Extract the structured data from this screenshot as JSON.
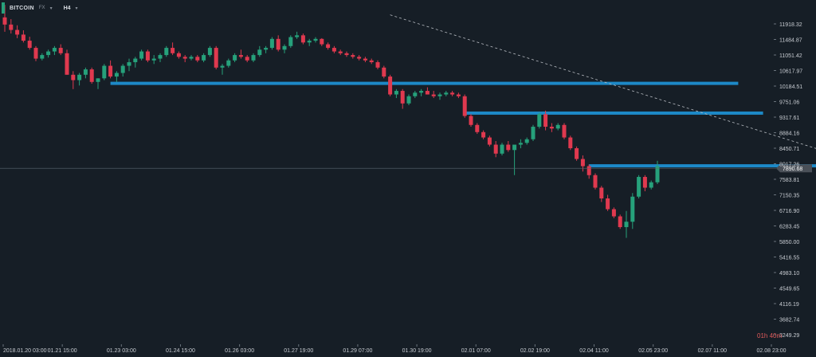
{
  "header": {
    "symbol": "BITCOIN",
    "exchange_dropdown": "FX",
    "timeframe": "H4",
    "timeframe_dropdown": "▾"
  },
  "timer": "01h 40m",
  "colors": {
    "background": "#161e26",
    "up": "#26a17b",
    "down": "#e0394f",
    "level": "#1e8fd0",
    "trend": "#b8bcc2",
    "price_line": "#5a6872",
    "price_label_bg": "#4a5058"
  },
  "chart_data": {
    "type": "candlestick",
    "title": "",
    "xlabel": "",
    "ylabel": "",
    "y_ticks": [
      "11918.32",
      "11484.87",
      "11051.42",
      "10617.97",
      "10184.51",
      "9751.06",
      "9317.61",
      "8884.16",
      "8450.71",
      "8017.26",
      "7583.81",
      "7150.35",
      "6716.90",
      "6283.45",
      "5850.00",
      "5416.55",
      "4983.10",
      "4549.65",
      "4116.19",
      "3682.74",
      "3249.29"
    ],
    "y_range": [
      3249.29,
      11918.32
    ],
    "x_ticks": [
      "2018.01.20 03:00",
      "01.21 15:00",
      "01.23 03:00",
      "01.24 15:00",
      "01.26 03:00",
      "01.27 19:00",
      "01.29 07:00",
      "01.30 19:00",
      "02.01 07:00",
      "02.02 19:00",
      "02.04 11:00",
      "02.05 23:00",
      "02.07 11:00",
      "02.08 23:00"
    ],
    "current_price": "7890.68",
    "current_price_value": 7890.68,
    "support_resistance_levels": [
      {
        "price": 10260,
        "from_bar": 17,
        "to_bar": 118
      },
      {
        "price": 9430,
        "from_bar": 74,
        "to_bar": 122
      },
      {
        "price": 7960,
        "from_bar": 94,
        "to_bar": 142
      }
    ],
    "trendline": {
      "from_bar": 62,
      "from_price": 12170,
      "to_bar": 142,
      "to_price": 7820
    },
    "candles": [
      [
        12100,
        12450,
        11700,
        11900
      ],
      [
        11900,
        12050,
        11650,
        11750
      ],
      [
        11750,
        11880,
        11520,
        11620
      ],
      [
        11620,
        11740,
        11400,
        11450
      ],
      [
        11450,
        11560,
        11200,
        11250
      ],
      [
        11250,
        11300,
        10880,
        10950
      ],
      [
        10950,
        11100,
        10900,
        11050
      ],
      [
        11050,
        11200,
        10980,
        11150
      ],
      [
        11150,
        11300,
        11050,
        11250
      ],
      [
        11250,
        11350,
        11050,
        11100
      ],
      [
        11100,
        11200,
        10500,
        10500
      ],
      [
        10500,
        10600,
        10100,
        10350
      ],
      [
        10350,
        10550,
        10200,
        10500
      ],
      [
        10500,
        10700,
        10400,
        10650
      ],
      [
        10650,
        10700,
        10250,
        10300
      ],
      [
        10300,
        10400,
        10100,
        10400
      ],
      [
        10400,
        10800,
        10350,
        10750
      ],
      [
        10750,
        10900,
        10400,
        10450
      ],
      [
        10450,
        10600,
        10300,
        10550
      ],
      [
        10550,
        10800,
        10450,
        10750
      ],
      [
        10750,
        10950,
        10600,
        10850
      ],
      [
        10850,
        11000,
        10700,
        10950
      ],
      [
        10950,
        11200,
        10900,
        11150
      ],
      [
        11150,
        11200,
        10850,
        10900
      ],
      [
        10900,
        11050,
        10800,
        10950
      ],
      [
        10950,
        11100,
        10850,
        11050
      ],
      [
        11050,
        11300,
        11000,
        11250
      ],
      [
        11250,
        11400,
        11050,
        11100
      ],
      [
        11100,
        11150,
        10950,
        11000
      ],
      [
        11000,
        11050,
        10850,
        10950
      ],
      [
        10950,
        11050,
        10900,
        11000
      ],
      [
        11000,
        11050,
        10850,
        10900
      ],
      [
        10900,
        11100,
        10850,
        11050
      ],
      [
        11050,
        11300,
        11000,
        11250
      ],
      [
        11250,
        11300,
        10650,
        10700
      ],
      [
        10700,
        10800,
        10500,
        10750
      ],
      [
        10750,
        10950,
        10700,
        10900
      ],
      [
        10900,
        11100,
        10850,
        11050
      ],
      [
        11050,
        11200,
        10950,
        11000
      ],
      [
        11000,
        11050,
        10850,
        10900
      ],
      [
        10900,
        11100,
        10850,
        11050
      ],
      [
        11050,
        11300,
        11000,
        11200
      ],
      [
        11200,
        11300,
        11100,
        11250
      ],
      [
        11250,
        11550,
        11200,
        11500
      ],
      [
        11500,
        11600,
        11150,
        11200
      ],
      [
        11200,
        11350,
        11100,
        11300
      ],
      [
        11300,
        11600,
        11250,
        11550
      ],
      [
        11550,
        11700,
        11500,
        11600
      ],
      [
        11600,
        11650,
        11350,
        11400
      ],
      [
        11400,
        11500,
        11300,
        11450
      ],
      [
        11450,
        11550,
        11400,
        11500
      ],
      [
        11500,
        11520,
        11300,
        11350
      ],
      [
        11350,
        11400,
        11200,
        11250
      ],
      [
        11250,
        11300,
        11100,
        11150
      ],
      [
        11150,
        11200,
        11050,
        11100
      ],
      [
        11100,
        11150,
        11000,
        11050
      ],
      [
        11050,
        11100,
        10950,
        11000
      ],
      [
        11000,
        11050,
        10900,
        10950
      ],
      [
        10950,
        11000,
        10850,
        10900
      ],
      [
        10900,
        10950,
        10800,
        10850
      ],
      [
        10850,
        10900,
        10650,
        10700
      ],
      [
        10700,
        10750,
        10400,
        10450
      ],
      [
        10450,
        10500,
        9900,
        9950
      ],
      [
        9950,
        10100,
        9850,
        10050
      ],
      [
        10050,
        10100,
        9550,
        9700
      ],
      [
        9700,
        9950,
        9650,
        9900
      ],
      [
        9900,
        10050,
        9850,
        10000
      ],
      [
        10000,
        10100,
        9900,
        10050
      ],
      [
        10050,
        10150,
        9950,
        9950
      ],
      [
        9950,
        10050,
        9850,
        9900
      ],
      [
        9900,
        10000,
        9800,
        9950
      ],
      [
        9950,
        10050,
        9900,
        10000
      ],
      [
        10000,
        10050,
        9900,
        9950
      ],
      [
        9950,
        10000,
        9850,
        9900
      ],
      [
        9900,
        9950,
        9300,
        9350
      ],
      [
        9350,
        9400,
        9050,
        9100
      ],
      [
        9100,
        9150,
        8850,
        8900
      ],
      [
        8900,
        8950,
        8700,
        8750
      ],
      [
        8750,
        8800,
        8500,
        8550
      ],
      [
        8550,
        8650,
        8200,
        8300
      ],
      [
        8300,
        8600,
        8250,
        8550
      ],
      [
        8550,
        8650,
        8350,
        8400
      ],
      [
        8400,
        8500,
        7700,
        8550
      ],
      [
        8550,
        8700,
        8450,
        8600
      ],
      [
        8600,
        8750,
        8550,
        8700
      ],
      [
        8700,
        9100,
        8650,
        9050
      ],
      [
        9050,
        9450,
        9000,
        9400
      ],
      [
        9400,
        9500,
        8950,
        9050
      ],
      [
        9050,
        9150,
        8900,
        9000
      ],
      [
        9000,
        9150,
        8950,
        9100
      ],
      [
        9100,
        9150,
        8700,
        8750
      ],
      [
        8750,
        8800,
        8400,
        8450
      ],
      [
        8450,
        8500,
        8100,
        8150
      ],
      [
        8150,
        8250,
        7800,
        7950
      ],
      [
        7950,
        8000,
        7600,
        7700
      ],
      [
        7700,
        7750,
        7300,
        7350
      ],
      [
        7350,
        7400,
        6950,
        7050
      ],
      [
        7050,
        7150,
        6700,
        6750
      ],
      [
        6750,
        6800,
        6500,
        6550
      ],
      [
        6550,
        6600,
        6200,
        6250
      ],
      [
        6250,
        6700,
        5950,
        6400
      ],
      [
        6400,
        7200,
        6200,
        7100
      ],
      [
        7100,
        7700,
        7050,
        7650
      ],
      [
        7650,
        7700,
        7250,
        7350
      ],
      [
        7350,
        7550,
        7300,
        7500
      ],
      [
        7500,
        8100,
        7450,
        7950
      ]
    ]
  }
}
